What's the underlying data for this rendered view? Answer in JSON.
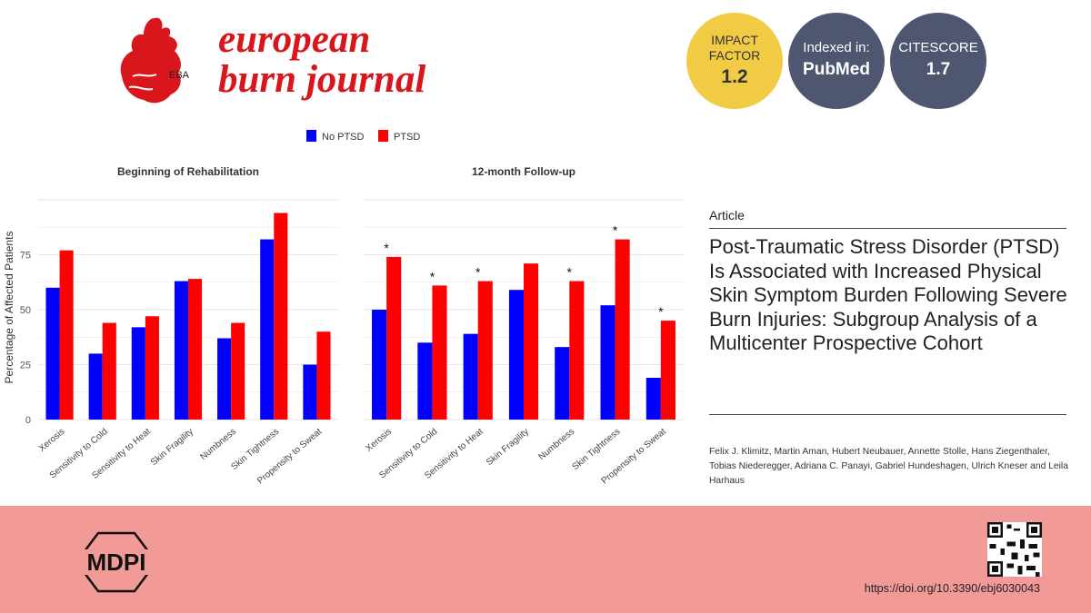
{
  "header": {
    "publisher_mark": "EBA",
    "journal_line1": "european",
    "journal_line2": "burn journal",
    "badges": {
      "impact_factor": {
        "label_line1": "IMPACT",
        "label_line2": "FACTOR",
        "value": "1.2"
      },
      "indexed": {
        "label": "Indexed in:",
        "value": "PubMed"
      },
      "citescore": {
        "label": "CITESCORE",
        "value": "1.7"
      }
    }
  },
  "chart_data": {
    "type": "bar",
    "ylabel": "Percentage of Affected Patients",
    "ylim": [
      0,
      100
    ],
    "yticks": [
      0,
      25,
      50,
      75
    ],
    "categories": [
      "Xerosis",
      "Sensitivity to Cold",
      "Sensitivity to Heat",
      "Skin Fragility",
      "Numbness",
      "Skin Tightness",
      "Propensity to Sweat"
    ],
    "legend": [
      "No PTSD",
      "PTSD"
    ],
    "colors": {
      "No PTSD": "#0000ff",
      "PTSD": "#ff0000"
    },
    "panels": [
      {
        "title": "Beginning of Rehabilitation",
        "series": [
          {
            "name": "No PTSD",
            "values": [
              60,
              30,
              42,
              63,
              37,
              82,
              25
            ]
          },
          {
            "name": "PTSD",
            "values": [
              77,
              44,
              47,
              64,
              44,
              94,
              40
            ]
          }
        ],
        "significant": [
          false,
          false,
          false,
          false,
          false,
          false,
          false
        ]
      },
      {
        "title": "12-month Follow-up",
        "series": [
          {
            "name": "No PTSD",
            "values": [
              50,
              35,
              39,
              59,
              33,
              52,
              19
            ]
          },
          {
            "name": "PTSD",
            "values": [
              74,
              61,
              63,
              71,
              63,
              82,
              45
            ]
          }
        ],
        "significant": [
          true,
          true,
          true,
          false,
          true,
          true,
          true
        ]
      }
    ],
    "significance_marker": "*"
  },
  "article": {
    "type_label": "Article",
    "title": "Post-Traumatic Stress Disorder (PTSD) Is Associated with Increased Physical Skin Symptom Burden Following Severe Burn Injuries: Subgroup Analysis of a Multicenter Prospective Cohort",
    "authors_line1": "Felix J. Klimitz, Martin Aman, Hubert Neubauer, Annette Stolle, Hans Ziegenthaler,",
    "authors_line2": "Tobias Niederegger, Adriana C. Panayi, Gabriel Hundeshagen, Ulrich Kneser and Leila Harhaus"
  },
  "footer": {
    "publisher": "MDPI",
    "doi": "https://doi.org/10.3390/ebj6030043"
  }
}
